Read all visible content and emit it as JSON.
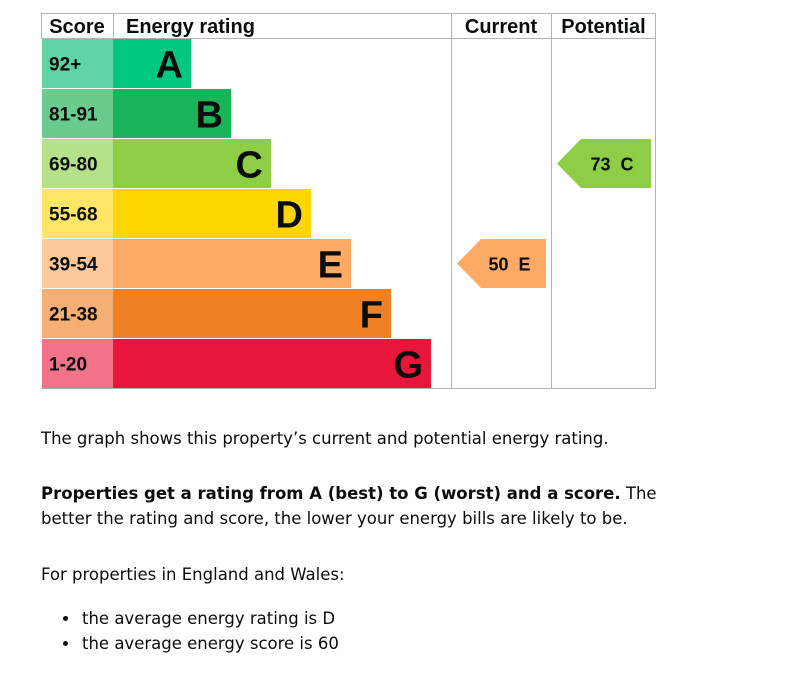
{
  "chart_data": {
    "type": "bar",
    "headers": {
      "score": "Score",
      "rating": "Energy rating",
      "current": "Current",
      "potential": "Potential"
    },
    "bands": [
      {
        "letter": "A",
        "range": "92+",
        "color": "#00c781",
        "score_bg": "#5fd3a3"
      },
      {
        "letter": "B",
        "range": "81-91",
        "color": "#19b459",
        "score_bg": "#6bcb8e"
      },
      {
        "letter": "C",
        "range": "69-80",
        "color": "#8dce46",
        "score_bg": "#b7e08a"
      },
      {
        "letter": "D",
        "range": "55-68",
        "color": "#ffd500",
        "score_bg": "#ffe566"
      },
      {
        "letter": "E",
        "range": "39-54",
        "color": "#fcaa65",
        "score_bg": "#fdc89a"
      },
      {
        "letter": "F",
        "range": "21-38",
        "color": "#ef8023",
        "score_bg": "#f5ae73"
      },
      {
        "letter": "G",
        "range": "1-20",
        "color": "#e9153b",
        "score_bg": "#f0738a"
      }
    ],
    "current": {
      "score": 50,
      "letter": "E",
      "label": "50  E",
      "color": "#fcaa65"
    },
    "potential": {
      "score": 73,
      "letter": "C",
      "label": "73  C",
      "color": "#8dce46"
    }
  },
  "text": {
    "intro": "The graph shows this property’s current and potential energy rating.",
    "rating_bold": "Properties get a rating from A (best) to G (worst) and a score.",
    "rating_rest": " The better the rating and score, the lower your energy bills are likely to be.",
    "region_intro": "For properties in England and Wales:",
    "bullets": [
      "the average energy rating is D",
      "the average energy score is 60"
    ]
  }
}
